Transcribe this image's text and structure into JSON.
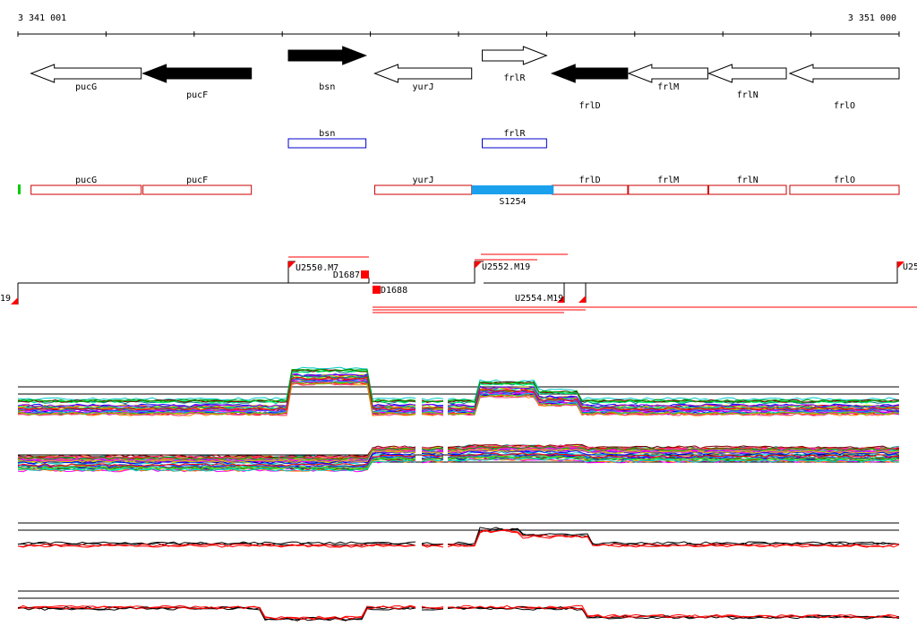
{
  "ruler": {
    "start_label": "3 341 001",
    "end_label": "3 351 000",
    "start_bp": 3341001,
    "end_bp": 3351000
  },
  "genes": [
    {
      "name": "pucG",
      "start": 3341150,
      "end": 3342400,
      "strand": "-",
      "fill": "white"
    },
    {
      "name": "pucF",
      "start": 3342420,
      "end": 3343650,
      "strand": "-",
      "fill": "black"
    },
    {
      "name": "bsn",
      "start": 3344070,
      "end": 3344950,
      "strand": "+",
      "fill": "black"
    },
    {
      "name": "yurJ",
      "start": 3345050,
      "end": 3346150,
      "strand": "-",
      "fill": "white"
    },
    {
      "name": "frlR",
      "start": 3346270,
      "end": 3347000,
      "strand": "+",
      "fill": "white"
    },
    {
      "name": "frlD",
      "start": 3347060,
      "end": 3347920,
      "strand": "-",
      "fill": "black"
    },
    {
      "name": "frlM",
      "start": 3347930,
      "end": 3348830,
      "strand": "-",
      "fill": "white"
    },
    {
      "name": "frlN",
      "start": 3348840,
      "end": 3349720,
      "strand": "-",
      "fill": "white"
    },
    {
      "name": "frlO",
      "start": 3349760,
      "end": 3351000,
      "strand": "-",
      "fill": "white"
    }
  ],
  "plus_strand_features": [
    {
      "name": "bsn",
      "start": 3344070,
      "end": 3344950
    },
    {
      "name": "frlR",
      "start": 3346270,
      "end": 3347000
    }
  ],
  "minus_strand_features": [
    {
      "name": "pucG",
      "start": 3341150,
      "end": 3342400
    },
    {
      "name": "pucF",
      "start": 3342420,
      "end": 3343650
    },
    {
      "name": "yurJ",
      "start": 3345050,
      "end": 3346150
    },
    {
      "name": "frlD",
      "start": 3347060,
      "end": 3347920
    },
    {
      "name": "frlM",
      "start": 3347930,
      "end": 3348830
    },
    {
      "name": "frlN",
      "start": 3348840,
      "end": 3349720
    },
    {
      "name": "frlO",
      "start": 3349760,
      "end": 3351000
    }
  ],
  "srna": {
    "name": "S1254",
    "start": 3346150,
    "end": 3347080,
    "color": "#1aa0ec"
  },
  "upstream_marker_color": "#00cc00",
  "transcript_labels": [
    {
      "text": "U2550.M7",
      "bp": 3344070,
      "row": "upper"
    },
    {
      "text": "D1687",
      "bp": 3344525,
      "row": "upper"
    },
    {
      "text": "D1688",
      "bp": 3345120,
      "row": "lower"
    },
    {
      "text": "U2552.M19",
      "bp": 3346170,
      "row": "upper"
    },
    {
      "text": "U2554.M19",
      "bp": 3346650,
      "row": "lower"
    },
    {
      "text": "U25",
      "bp": 3350980,
      "row": "upper"
    },
    {
      "text": "19",
      "bp": 3341001,
      "row": "lower"
    }
  ],
  "colors": {
    "transcript": "#ff0000",
    "feature_plus": "#0000cc",
    "feature_minus": "#cc0000"
  }
}
